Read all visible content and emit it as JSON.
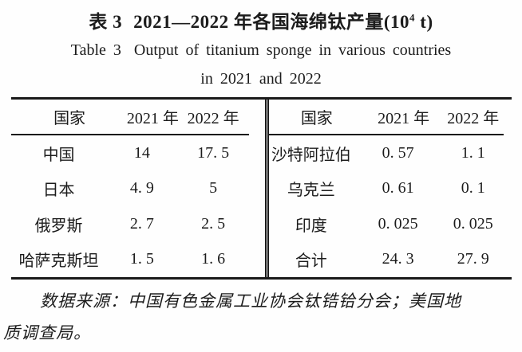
{
  "title": {
    "zh_prefix": "表 3",
    "zh_main": "2021—2022 年各国海绵钛产量(10",
    "zh_sup": "4",
    "zh_tail": " t)",
    "en_prefix": "Table 3",
    "en_main": "Output of titanium sponge in various countries",
    "en_line2": "in 2021 and 2022"
  },
  "table": {
    "left": {
      "headers": [
        "国家",
        "2021 年",
        "2022 年"
      ],
      "rows": [
        [
          "中国",
          "14",
          "17. 5"
        ],
        [
          "日本",
          "4. 9",
          "5"
        ],
        [
          "俄罗斯",
          "2. 7",
          "2. 5"
        ],
        [
          "哈萨克斯坦",
          "1. 5",
          "1. 6"
        ]
      ]
    },
    "right": {
      "headers": [
        "国家",
        "2021 年",
        "2022 年"
      ],
      "rows": [
        [
          "沙特阿拉伯",
          "0. 57",
          "1. 1"
        ],
        [
          "乌克兰",
          "0. 61",
          "0. 1"
        ],
        [
          "印度",
          "0. 025",
          "0. 025"
        ],
        [
          "合计",
          "24. 3",
          "27. 9"
        ]
      ]
    }
  },
  "footnote": {
    "line1": "数据来源：中国有色金属工业协会钛锆铪分会；美国地",
    "line2": "质调查局。"
  }
}
